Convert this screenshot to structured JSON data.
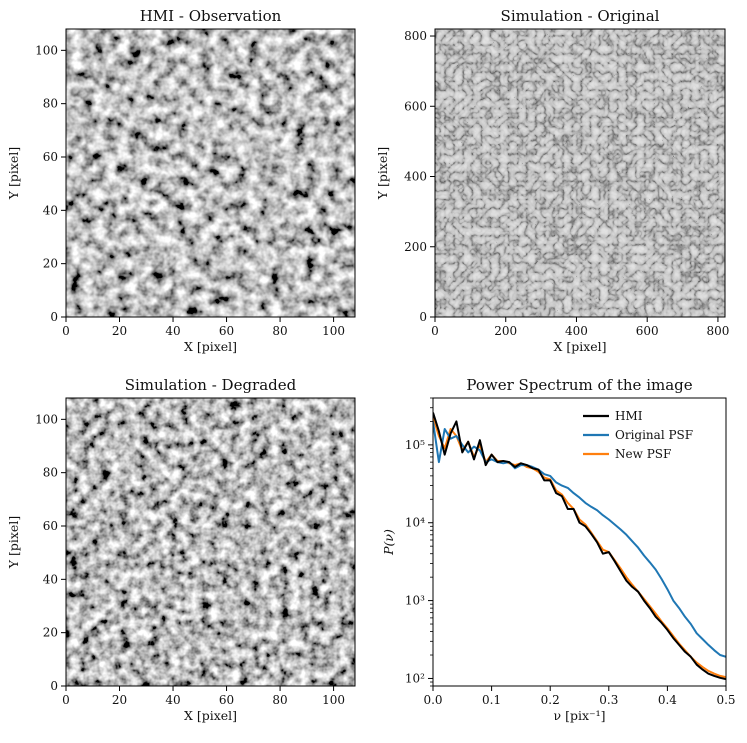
{
  "chart_data": [
    {
      "type": "heatmap",
      "title": "HMI - Observation",
      "xlabel": "X [pixel]",
      "ylabel": "Y [pixel]",
      "xlim": [
        0,
        108
      ],
      "ylim": [
        0,
        108
      ],
      "xticks": [
        0,
        20,
        40,
        60,
        80,
        100
      ],
      "yticks": [
        0,
        20,
        40,
        60,
        80,
        100
      ],
      "colormap": "gray"
    },
    {
      "type": "heatmap",
      "title": "Simulation - Original",
      "xlabel": "X [pixel]",
      "ylabel": "Y [pixel]",
      "xlim": [
        0,
        820
      ],
      "ylim": [
        0,
        820
      ],
      "xticks": [
        0,
        200,
        400,
        600,
        800
      ],
      "yticks": [
        0,
        200,
        400,
        600,
        800
      ],
      "colormap": "gray"
    },
    {
      "type": "heatmap",
      "title": "Simulation - Degraded",
      "xlabel": "X [pixel]",
      "ylabel": "Y [pixel]",
      "xlim": [
        0,
        108
      ],
      "ylim": [
        0,
        108
      ],
      "xticks": [
        0,
        20,
        40,
        60,
        80,
        100
      ],
      "yticks": [
        0,
        20,
        40,
        60,
        80,
        100
      ],
      "colormap": "gray"
    },
    {
      "type": "line",
      "title": "Power Spectrum of the image",
      "xlabel": "ν [pix⁻¹]",
      "ylabel": "P(ν)",
      "yscale": "log",
      "xlim": [
        0,
        0.5
      ],
      "ylim": [
        80,
        400000
      ],
      "xticks": [
        0.0,
        0.1,
        0.2,
        0.3,
        0.4,
        0.5
      ],
      "yticks": [
        "10²",
        "10³",
        "10⁴",
        "10⁵"
      ],
      "legend": "top-right",
      "series": [
        {
          "name": "HMI",
          "color": "#000000",
          "x": [
            0.0,
            0.01,
            0.02,
            0.03,
            0.04,
            0.05,
            0.06,
            0.07,
            0.08,
            0.09,
            0.1,
            0.11,
            0.12,
            0.13,
            0.14,
            0.15,
            0.16,
            0.17,
            0.18,
            0.19,
            0.2,
            0.21,
            0.22,
            0.23,
            0.24,
            0.25,
            0.26,
            0.27,
            0.28,
            0.29,
            0.3,
            0.31,
            0.32,
            0.33,
            0.34,
            0.35,
            0.36,
            0.37,
            0.38,
            0.39,
            0.4,
            0.41,
            0.42,
            0.43,
            0.44,
            0.45,
            0.46,
            0.47,
            0.48,
            0.49,
            0.5
          ],
          "values": [
            260000,
            150000,
            75000,
            140000,
            200000,
            80000,
            110000,
            65000,
            115000,
            55000,
            75000,
            60000,
            62000,
            60000,
            52000,
            58000,
            55000,
            50000,
            48000,
            35000,
            35000,
            24000,
            22000,
            15000,
            15000,
            10000,
            9000,
            7200,
            5600,
            4000,
            4200,
            3200,
            2400,
            1800,
            1500,
            1300,
            1000,
            800,
            620,
            520,
            420,
            330,
            270,
            220,
            190,
            150,
            130,
            115,
            108,
            102,
            98
          ]
        },
        {
          "name": "Original PSF",
          "color": "#1f77b4",
          "x": [
            0.0,
            0.01,
            0.02,
            0.03,
            0.04,
            0.05,
            0.06,
            0.07,
            0.08,
            0.09,
            0.1,
            0.11,
            0.12,
            0.13,
            0.14,
            0.15,
            0.16,
            0.17,
            0.18,
            0.19,
            0.2,
            0.21,
            0.22,
            0.23,
            0.24,
            0.25,
            0.26,
            0.27,
            0.28,
            0.29,
            0.3,
            0.31,
            0.32,
            0.33,
            0.34,
            0.35,
            0.36,
            0.37,
            0.38,
            0.39,
            0.4,
            0.41,
            0.42,
            0.43,
            0.44,
            0.45,
            0.46,
            0.47,
            0.48,
            0.49,
            0.5
          ],
          "values": [
            200000,
            60000,
            160000,
            120000,
            130000,
            100000,
            80000,
            95000,
            85000,
            60000,
            65000,
            60000,
            58000,
            60000,
            50000,
            55000,
            55000,
            52000,
            48000,
            42000,
            40000,
            33000,
            30000,
            28000,
            24000,
            21000,
            18000,
            16000,
            14500,
            12500,
            11000,
            9500,
            8200,
            7000,
            5800,
            4800,
            3800,
            3100,
            2500,
            1900,
            1400,
            1000,
            800,
            620,
            500,
            380,
            320,
            270,
            230,
            200,
            190
          ]
        },
        {
          "name": "New PSF",
          "color": "#ff7f0e",
          "x": [
            0.0,
            0.01,
            0.02,
            0.03,
            0.04,
            0.05,
            0.06,
            0.07,
            0.08,
            0.09,
            0.1,
            0.11,
            0.12,
            0.13,
            0.14,
            0.15,
            0.16,
            0.17,
            0.18,
            0.19,
            0.2,
            0.21,
            0.22,
            0.23,
            0.24,
            0.25,
            0.26,
            0.27,
            0.28,
            0.29,
            0.3,
            0.31,
            0.32,
            0.33,
            0.34,
            0.35,
            0.36,
            0.37,
            0.38,
            0.39,
            0.4,
            0.41,
            0.42,
            0.43,
            0.44,
            0.45,
            0.46,
            0.47,
            0.48,
            0.49,
            0.5
          ],
          "values": [
            230000,
            130000,
            90000,
            160000,
            130000,
            85000,
            110000,
            70000,
            100000,
            60000,
            75000,
            62000,
            62000,
            58000,
            55000,
            58000,
            52000,
            50000,
            45000,
            38000,
            36000,
            26000,
            23000,
            18000,
            15000,
            11000,
            9500,
            7500,
            5800,
            4500,
            4200,
            3300,
            2600,
            2000,
            1600,
            1300,
            1050,
            850,
            680,
            540,
            440,
            350,
            280,
            230,
            190,
            160,
            140,
            125,
            115,
            108,
            104
          ]
        }
      ]
    }
  ]
}
